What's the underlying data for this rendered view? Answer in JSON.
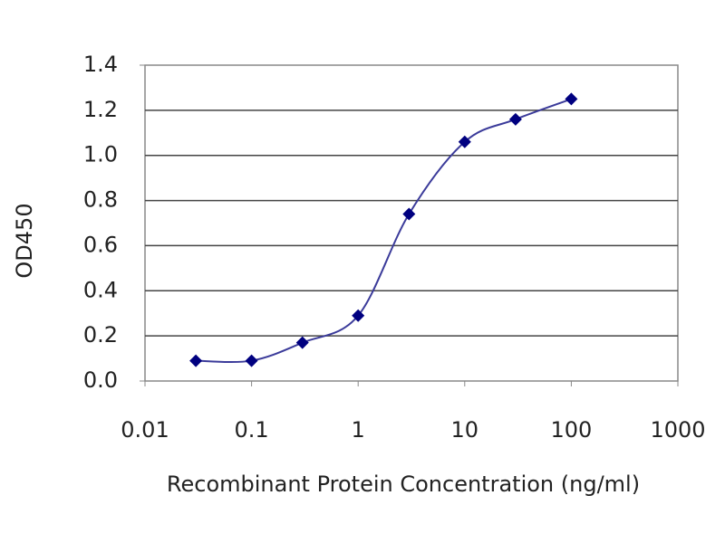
{
  "chart_data": {
    "type": "line",
    "x_label": "Recombinant Protein Concentration (ng/ml)",
    "y_label": "OD450",
    "x": [
      0.03,
      0.1,
      0.3,
      1,
      3,
      10,
      30,
      100
    ],
    "series": [
      {
        "color": "#3b3b9a",
        "marker_color": "#000080",
        "values": [
          0.09,
          0.09,
          0.17,
          0.29,
          0.74,
          1.06,
          1.16,
          1.25
        ]
      }
    ],
    "xlog": true,
    "xlim": [
      0.01,
      1000
    ],
    "xticks": [
      0.01,
      0.1,
      1,
      10,
      100,
      1000
    ],
    "ylim": [
      0,
      1.4
    ],
    "yticks": [
      {
        "value": 0,
        "label": "0.0"
      },
      0.2,
      0.4,
      0.6,
      0.8,
      {
        "value": 1,
        "label": "1.0"
      },
      1.2,
      1.4
    ],
    "grid": true,
    "smooth": true
  }
}
